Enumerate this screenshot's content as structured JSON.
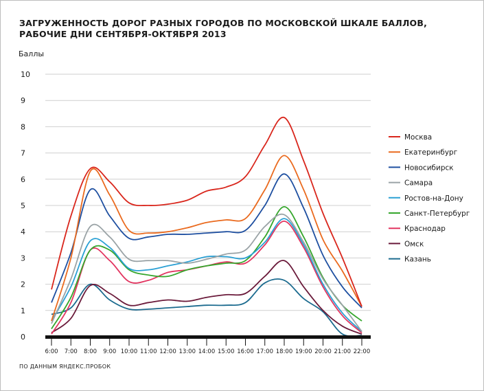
{
  "chart_data": {
    "type": "line",
    "title": "Загруженность дорог разных городов по московской шкале баллов, рабочие дни сентября-октября 2013",
    "ylabel": "Баллы",
    "xlabel": "",
    "ylim": [
      0,
      10
    ],
    "yticks": [
      "0",
      "1",
      "2",
      "3",
      "4",
      "5",
      "6",
      "7",
      "8",
      "9",
      "10"
    ],
    "x": [
      "6:00",
      "7:00",
      "8:00",
      "9:00",
      "10:00",
      "11:00",
      "12:00",
      "13:00",
      "14:00",
      "15:00",
      "16:00",
      "17:00",
      "18:00",
      "19:00",
      "20:00",
      "21:00",
      "22:00"
    ],
    "grid": true,
    "legend_position": "right",
    "series": [
      {
        "name": "Москва",
        "color": "#d9261c",
        "values": [
          1.8,
          4.6,
          6.4,
          5.9,
          5.1,
          5.0,
          5.05,
          5.2,
          5.55,
          5.7,
          6.1,
          7.3,
          8.35,
          6.7,
          4.7,
          3.0,
          1.15
        ]
      },
      {
        "name": "Екатеринбург",
        "color": "#ea6a1e",
        "values": [
          0.6,
          3.0,
          6.3,
          5.4,
          4.05,
          3.95,
          4.0,
          4.15,
          4.35,
          4.45,
          4.5,
          5.6,
          6.9,
          5.6,
          3.7,
          2.5,
          1.15
        ]
      },
      {
        "name": "Новосибирск",
        "color": "#1e4fa0",
        "values": [
          1.3,
          3.2,
          5.6,
          4.6,
          3.75,
          3.8,
          3.9,
          3.9,
          3.95,
          4.0,
          4.05,
          5.0,
          6.2,
          4.9,
          3.1,
          1.9,
          1.1
        ]
      },
      {
        "name": "Самара",
        "color": "#9aa3a6",
        "values": [
          0.5,
          2.2,
          4.2,
          3.8,
          2.95,
          2.9,
          2.9,
          2.8,
          2.95,
          3.15,
          3.3,
          4.2,
          4.65,
          3.6,
          2.2,
          1.2,
          0.2
        ]
      },
      {
        "name": "Ростов-на-Дону",
        "color": "#2aa0d4",
        "values": [
          0.6,
          1.9,
          3.65,
          3.4,
          2.6,
          2.55,
          2.7,
          2.85,
          3.05,
          3.05,
          3.0,
          3.6,
          4.5,
          3.5,
          2.0,
          0.9,
          0.2
        ]
      },
      {
        "name": "Санкт-Петербург",
        "color": "#35a62c",
        "values": [
          0.3,
          1.5,
          3.3,
          3.3,
          2.55,
          2.35,
          2.3,
          2.55,
          2.7,
          2.8,
          2.9,
          3.8,
          4.95,
          3.8,
          2.25,
          1.2,
          0.6
        ]
      },
      {
        "name": "Краснодар",
        "color": "#e23560",
        "values": [
          0.1,
          1.3,
          3.3,
          2.9,
          2.1,
          2.15,
          2.45,
          2.55,
          2.7,
          2.85,
          2.8,
          3.5,
          4.4,
          3.4,
          1.9,
          0.8,
          0.15
        ]
      },
      {
        "name": "Омск",
        "color": "#6a1a3a",
        "values": [
          0.15,
          0.7,
          1.95,
          1.65,
          1.2,
          1.3,
          1.4,
          1.35,
          1.5,
          1.6,
          1.65,
          2.3,
          2.9,
          1.9,
          1.0,
          0.4,
          0.1
        ]
      },
      {
        "name": "Казань",
        "color": "#1c6b8f",
        "values": [
          0.85,
          1.1,
          2.0,
          1.4,
          1.05,
          1.05,
          1.1,
          1.15,
          1.2,
          1.2,
          1.3,
          2.05,
          2.15,
          1.45,
          0.95,
          0.1,
          0.05
        ]
      }
    ]
  },
  "source": "по данным Яндекс.Пробок"
}
